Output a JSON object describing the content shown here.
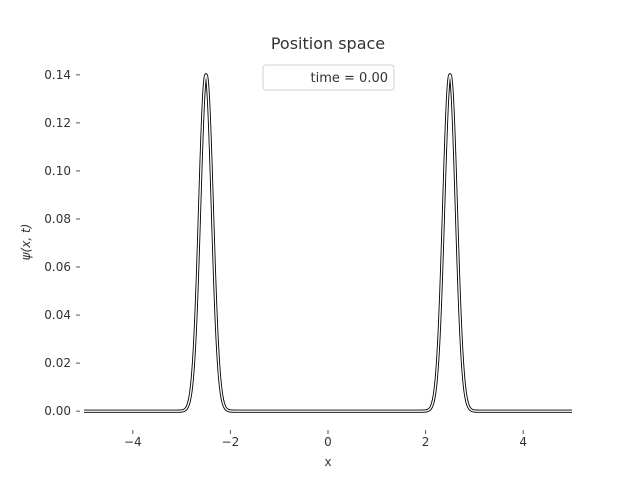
{
  "chart_data": {
    "type": "line",
    "title": "Position space",
    "xlabel": "x",
    "ylabel": "ψ(x, t)",
    "xlim": [
      -5,
      5
    ],
    "ylim": [
      -0.007,
      0.147
    ],
    "xticks": [
      -4,
      -2,
      0,
      2,
      4
    ],
    "xtick_labels": [
      "−4",
      "−2",
      "0",
      "2",
      "4"
    ],
    "yticks": [
      0.0,
      0.02,
      0.04,
      0.06,
      0.08,
      0.1,
      0.12,
      0.14
    ],
    "ytick_labels": [
      "0.00",
      "0.02",
      "0.04",
      "0.06",
      "0.08",
      "0.10",
      "0.12",
      "0.14"
    ],
    "grid": false,
    "legend": {
      "placement": "upper-center",
      "entries": [
        "time = 0.00"
      ]
    },
    "series": [
      {
        "style": "dashed-black",
        "shape": "sum of two gaussians",
        "peaks": [
          {
            "center": -2.5,
            "height": 0.14,
            "sigma": 0.13
          },
          {
            "center": 2.5,
            "height": 0.14,
            "sigma": 0.13
          }
        ]
      }
    ]
  }
}
